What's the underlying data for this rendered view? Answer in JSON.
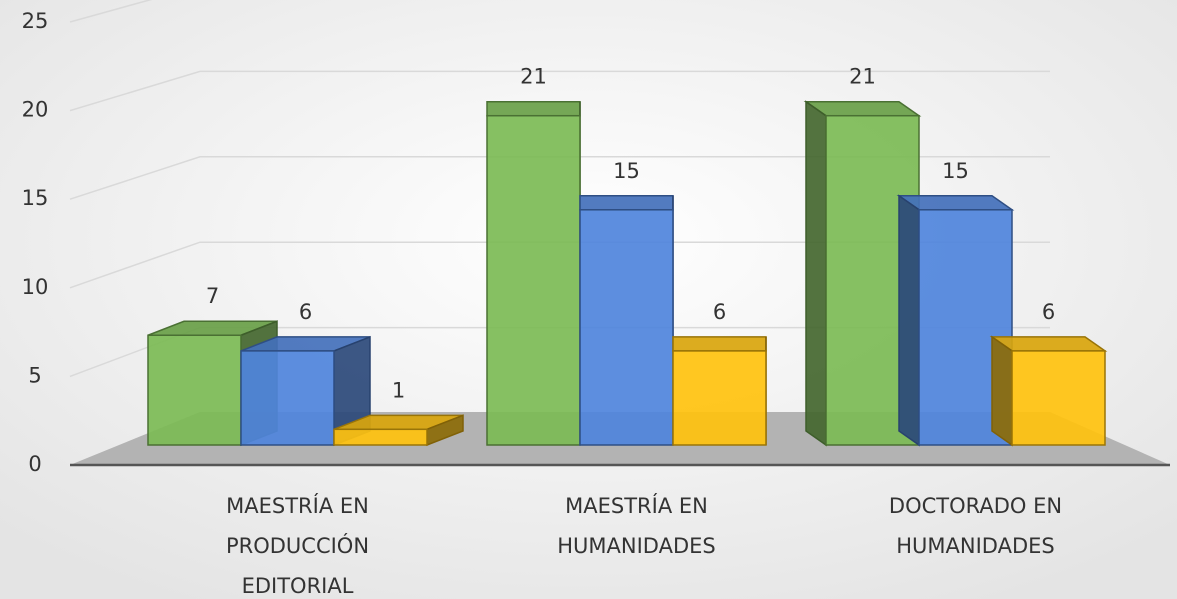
{
  "chart_data": {
    "type": "bar3d",
    "categories": [
      "MAESTRÍA EN PRODUCCIÓN EDITORIAL",
      "MAESTRÍA EN HUMANIDADES",
      "DOCTORADO EN HUMANIDADES"
    ],
    "series": [
      {
        "color": "#7cbb55",
        "values": [
          7,
          21,
          21
        ]
      },
      {
        "color": "#4f84dc",
        "values": [
          6,
          15,
          15
        ]
      },
      {
        "color": "#ffc20e",
        "values": [
          1,
          6,
          6
        ]
      }
    ],
    "ylim": [
      0,
      25
    ],
    "yticks": [
      0,
      5,
      10,
      15,
      20,
      25
    ],
    "grid": true
  }
}
